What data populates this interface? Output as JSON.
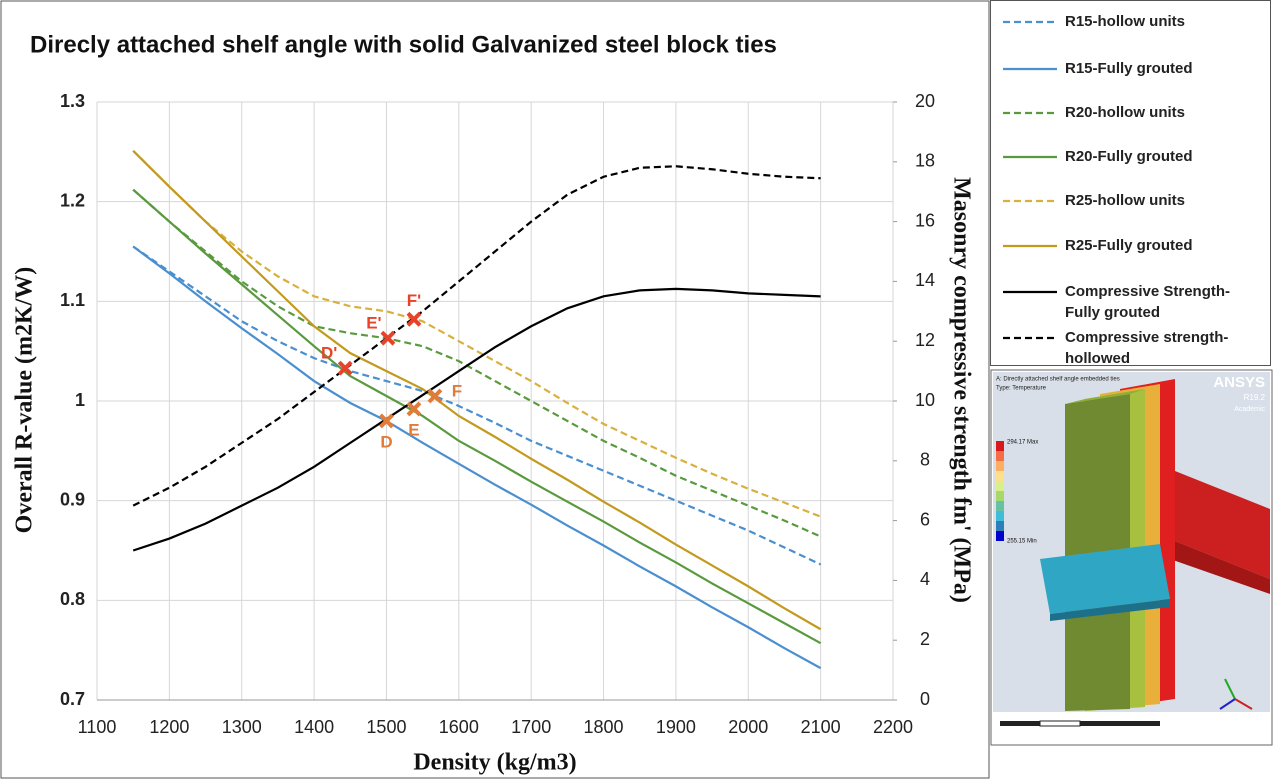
{
  "chart_data": {
    "type": "line",
    "title": "Direcly attached shelf angle with solid Galvanized steel block ties",
    "xlabel": "Density (kg/m3)",
    "ylabel": "Overall R-value (m2K/W)",
    "y2label": "Masonry compressive strength fm' (MPa)",
    "x": [
      1150,
      1200,
      1250,
      1300,
      1350,
      1400,
      1450,
      1500,
      1550,
      1600,
      1650,
      1700,
      1750,
      1800,
      1850,
      1900,
      1950,
      2000,
      2050,
      2100
    ],
    "series": [
      {
        "name": "R15-hollow units",
        "color": "#4a8fcf",
        "style": "dashed",
        "axis": "y",
        "values": [
          1.155,
          1.13,
          1.105,
          1.08,
          1.06,
          1.043,
          1.03,
          1.02,
          1.01,
          0.995,
          0.978,
          0.96,
          0.945,
          0.93,
          0.915,
          0.9,
          0.885,
          0.87,
          0.853,
          0.836
        ]
      },
      {
        "name": "R15-Fully grouted",
        "color": "#4a8fcf",
        "style": "solid",
        "axis": "y",
        "values": [
          1.155,
          1.128,
          1.1,
          1.073,
          1.047,
          1.02,
          0.998,
          0.98,
          0.958,
          0.937,
          0.916,
          0.896,
          0.875,
          0.855,
          0.834,
          0.814,
          0.793,
          0.773,
          0.752,
          0.732
        ]
      },
      {
        "name": "R20-hollow units",
        "color": "#5a9a3e",
        "style": "dashed",
        "axis": "y",
        "values": [
          1.212,
          1.18,
          1.15,
          1.12,
          1.095,
          1.075,
          1.068,
          1.063,
          1.055,
          1.04,
          1.02,
          1.0,
          0.98,
          0.96,
          0.943,
          0.925,
          0.91,
          0.895,
          0.88,
          0.864
        ]
      },
      {
        "name": "R20-Fully grouted",
        "color": "#5a9a3e",
        "style": "solid",
        "axis": "y",
        "values": [
          1.212,
          1.18,
          1.148,
          1.117,
          1.086,
          1.055,
          1.025,
          1.005,
          0.985,
          0.96,
          0.94,
          0.919,
          0.899,
          0.879,
          0.858,
          0.838,
          0.817,
          0.797,
          0.777,
          0.757
        ]
      },
      {
        "name": "R25-hollow units",
        "color": "#d8b040",
        "style": "dashed",
        "axis": "y",
        "values": [
          1.251,
          1.215,
          1.18,
          1.15,
          1.125,
          1.105,
          1.095,
          1.09,
          1.08,
          1.06,
          1.04,
          1.02,
          0.998,
          0.977,
          0.96,
          0.943,
          0.927,
          0.912,
          0.898,
          0.884
        ]
      },
      {
        "name": "R25-Fully grouted",
        "color": "#c39a1e",
        "style": "solid",
        "axis": "y",
        "values": [
          1.251,
          1.215,
          1.18,
          1.145,
          1.11,
          1.075,
          1.048,
          1.03,
          1.012,
          0.985,
          0.964,
          0.942,
          0.921,
          0.899,
          0.878,
          0.856,
          0.835,
          0.814,
          0.792,
          0.771
        ]
      },
      {
        "name": "Compressive Strength-Fully grouted",
        "color": "#000000",
        "style": "solid",
        "axis": "y2",
        "values": [
          5.0,
          5.4,
          5.9,
          6.5,
          7.1,
          7.8,
          8.6,
          9.4,
          10.2,
          11.0,
          11.8,
          12.5,
          13.1,
          13.5,
          13.7,
          13.75,
          13.7,
          13.6,
          13.55,
          13.5
        ]
      },
      {
        "name": "Compressive strength-hollowed",
        "color": "#000000",
        "style": "dashed",
        "axis": "y2",
        "values": [
          6.5,
          7.1,
          7.8,
          8.6,
          9.4,
          10.3,
          11.2,
          12.1,
          13.0,
          14.0,
          15.0,
          16.0,
          16.9,
          17.5,
          17.8,
          17.85,
          17.75,
          17.6,
          17.5,
          17.45
        ]
      }
    ],
    "annotations": [
      {
        "label": "D'",
        "x": 1443,
        "y": 1.033,
        "color": "#e8432a"
      },
      {
        "label": "E'",
        "x": 1502,
        "y": 1.063,
        "color": "#e8432a"
      },
      {
        "label": "F'",
        "x": 1538,
        "y": 1.082,
        "color": "#e8432a"
      },
      {
        "label": "D",
        "x": 1500,
        "y": 0.98,
        "color": "#e07b39"
      },
      {
        "label": "E",
        "x": 1538,
        "y": 0.992,
        "color": "#e07b39"
      },
      {
        "label": "F",
        "x": 1567,
        "y": 1.005,
        "color": "#e07b39"
      }
    ],
    "xlim": [
      1100,
      2200
    ],
    "xticks": [
      1100,
      1200,
      1300,
      1400,
      1500,
      1600,
      1700,
      1800,
      1900,
      2000,
      2100,
      2200
    ],
    "ylim": [
      0.7,
      1.3
    ],
    "yticks": [
      0.7,
      0.8,
      0.9,
      1,
      1.1,
      1.2,
      1.3
    ],
    "y2lim": [
      0,
      20
    ],
    "y2ticks": [
      0,
      2,
      4,
      6,
      8,
      10,
      12,
      14,
      16,
      18,
      20
    ],
    "grid": true
  },
  "inset": {
    "title": "A: Directly attached shelf angle embedded ties",
    "subtitle": "Type: Temperature",
    "brand": "ANSYS",
    "version": "R19.2",
    "edition": "Academic",
    "max_label": "294.17 Max",
    "min_label": "255.15 Min"
  }
}
